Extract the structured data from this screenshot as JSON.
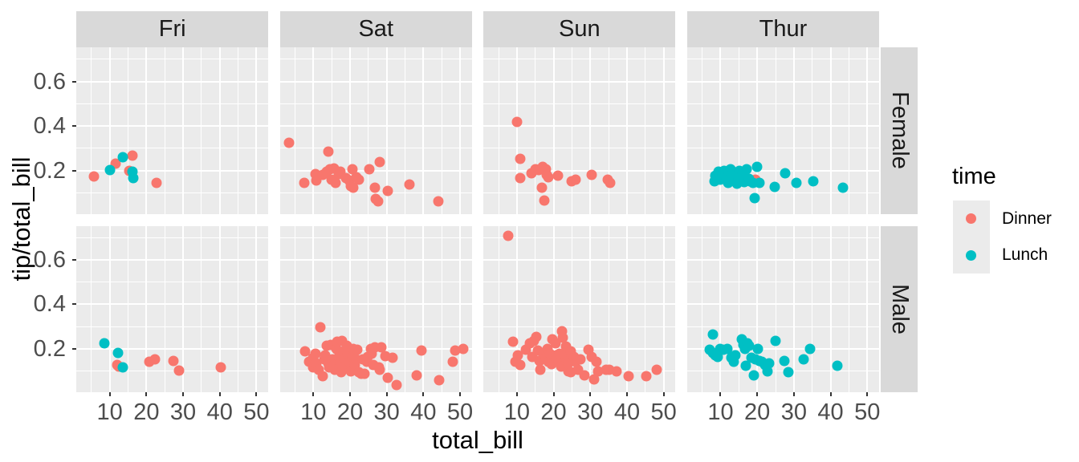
{
  "chart_data": {
    "type": "scatter",
    "title": "",
    "xlabel": "total_bill",
    "ylabel": "tip/total_bill",
    "facet_cols": [
      "Fri",
      "Sat",
      "Sun",
      "Thur"
    ],
    "facet_rows": [
      "Female",
      "Male"
    ],
    "x_ticks": [
      10,
      20,
      30,
      40,
      50
    ],
    "x_tick_labels": [
      "10",
      "20",
      "30",
      "40",
      "50"
    ],
    "x_minor_ticks": [
      5,
      15,
      25,
      35,
      45
    ],
    "y_ticks": [
      0.2,
      0.4,
      0.6
    ],
    "y_tick_labels": [
      "0.2",
      "0.4",
      "0.6"
    ],
    "y_minor_ticks": [
      0.1,
      0.3,
      0.5,
      0.7
    ],
    "x_domain": [
      0.88,
      53.25
    ],
    "y_domain": [
      0.005,
      0.755
    ],
    "grid": true,
    "legend": {
      "title": "time",
      "position": "right",
      "entries": [
        {
          "label": "Dinner",
          "color": "#F8766D"
        },
        {
          "label": "Lunch",
          "color": "#00BFC4"
        }
      ]
    },
    "colors": {
      "panel_bg": "#EBEBEB",
      "strip_bg": "#D9D9D9",
      "grid": "#FFFFFF",
      "axis_text": "#4D4D4D",
      "strip_text": "#1A1A1A",
      "tick_mark": "#333333",
      "legend_key_bg": "#EBEBEB"
    },
    "panels": [
      {
        "day": "Fri",
        "sex": "Female",
        "series": {
          "Dinner": [
            [
              5.8,
              0.174
            ],
            [
              11.5,
              0.23
            ],
            [
              15.3,
              0.2
            ],
            [
              16.3,
              0.266
            ],
            [
              22.7,
              0.145
            ]
          ],
          "Lunch": [
            [
              10.1,
              0.202
            ],
            [
              13.5,
              0.262
            ],
            [
              16.3,
              0.194
            ],
            [
              16.4,
              0.166
            ]
          ]
        }
      },
      {
        "day": "Sat",
        "sex": "Female",
        "series": {
          "Dinner": [
            [
              3.4,
              0.326
            ],
            [
              7.6,
              0.144
            ],
            [
              10.7,
              0.186
            ],
            [
              10.9,
              0.156
            ],
            [
              12.6,
              0.182
            ],
            [
              13.7,
              0.196
            ],
            [
              14.1,
              0.286
            ],
            [
              14.6,
              0.208
            ],
            [
              15.0,
              0.161
            ],
            [
              15.7,
              0.211
            ],
            [
              16.0,
              0.146
            ],
            [
              16.9,
              0.186
            ],
            [
              17.4,
              0.196
            ],
            [
              19.0,
              0.168
            ],
            [
              19.7,
              0.156
            ],
            [
              20.2,
              0.132
            ],
            [
              20.7,
              0.208
            ],
            [
              20.9,
              0.122
            ],
            [
              21.8,
              0.172
            ],
            [
              22.5,
              0.158
            ],
            [
              25.3,
              0.208
            ],
            [
              26.8,
              0.125
            ],
            [
              27.1,
              0.075
            ],
            [
              27.7,
              0.064
            ],
            [
              28.1,
              0.238
            ],
            [
              30.3,
              0.11
            ],
            [
              36.3,
              0.138
            ],
            [
              44.0,
              0.062
            ]
          ],
          "Lunch": []
        }
      },
      {
        "day": "Sun",
        "sex": "Female",
        "series": {
          "Dinner": [
            [
              10.0,
              0.42
            ],
            [
              10.9,
              0.254
            ],
            [
              10.9,
              0.166
            ],
            [
              14.0,
              0.19
            ],
            [
              15.0,
              0.208
            ],
            [
              16.0,
              0.204
            ],
            [
              16.8,
              0.125
            ],
            [
              17.1,
              0.216
            ],
            [
              17.4,
              0.065
            ],
            [
              17.9,
              0.206
            ],
            [
              18.2,
              0.18
            ],
            [
              18.6,
              0.17
            ],
            [
              21.3,
              0.176
            ],
            [
              25.0,
              0.152
            ],
            [
              25.9,
              0.161
            ],
            [
              30.4,
              0.18
            ],
            [
              34.8,
              0.158
            ],
            [
              35.5,
              0.146
            ]
          ],
          "Lunch": []
        }
      },
      {
        "day": "Thur",
        "sex": "Female",
        "series": {
          "Dinner": [
            [
              19.5,
              0.16
            ]
          ],
          "Lunch": [
            [
              8.3,
              0.152
            ],
            [
              8.5,
              0.176
            ],
            [
              9.4,
              0.194
            ],
            [
              9.8,
              0.158
            ],
            [
              10.1,
              0.172
            ],
            [
              10.5,
              0.18
            ],
            [
              11.0,
              0.2
            ],
            [
              11.6,
              0.164
            ],
            [
              12.0,
              0.146
            ],
            [
              12.4,
              0.19
            ],
            [
              12.7,
              0.208
            ],
            [
              13.0,
              0.176
            ],
            [
              13.4,
              0.194
            ],
            [
              13.8,
              0.152
            ],
            [
              14.5,
              0.14
            ],
            [
              14.9,
              0.163
            ],
            [
              15.1,
              0.2
            ],
            [
              16.0,
              0.188
            ],
            [
              16.5,
              0.15
            ],
            [
              17.1,
              0.206
            ],
            [
              17.8,
              0.164
            ],
            [
              18.0,
              0.152
            ],
            [
              18.9,
              0.146
            ],
            [
              19.3,
              0.077
            ],
            [
              20.0,
              0.218
            ],
            [
              20.7,
              0.146
            ],
            [
              24.7,
              0.128
            ],
            [
              27.7,
              0.188
            ],
            [
              30.6,
              0.146
            ],
            [
              35.3,
              0.152
            ],
            [
              43.4,
              0.122
            ]
          ]
        }
      },
      {
        "day": "Fri",
        "sex": "Male",
        "series": {
          "Dinner": [
            [
              12.0,
              0.125
            ],
            [
              12.5,
              0.12
            ],
            [
              20.8,
              0.14
            ],
            [
              22.4,
              0.152
            ],
            [
              27.4,
              0.144
            ],
            [
              29.0,
              0.101
            ],
            [
              40.3,
              0.114
            ]
          ],
          "Lunch": [
            [
              8.6,
              0.224
            ],
            [
              12.2,
              0.179
            ],
            [
              13.5,
              0.114
            ]
          ]
        }
      },
      {
        "day": "Sat",
        "sex": "Male",
        "series": {
          "Dinner": [
            [
              7.8,
              0.188
            ],
            [
              8.9,
              0.14
            ],
            [
              9.9,
              0.158
            ],
            [
              10.0,
              0.116
            ],
            [
              10.7,
              0.176
            ],
            [
              10.9,
              0.134
            ],
            [
              11.5,
              0.104
            ],
            [
              12.0,
              0.295
            ],
            [
              12.6,
              0.074
            ],
            [
              12.9,
              0.152
            ],
            [
              13.3,
              0.17
            ],
            [
              13.7,
              0.212
            ],
            [
              14.0,
              0.134
            ],
            [
              14.4,
              0.116
            ],
            [
              14.7,
              0.218
            ],
            [
              15.1,
              0.152
            ],
            [
              15.7,
              0.128
            ],
            [
              15.8,
              0.104
            ],
            [
              16.2,
              0.2
            ],
            [
              16.6,
              0.23
            ],
            [
              16.9,
              0.164
            ],
            [
              17.3,
              0.134
            ],
            [
              17.7,
              0.092
            ],
            [
              17.9,
              0.236
            ],
            [
              18.2,
              0.188
            ],
            [
              18.4,
              0.152
            ],
            [
              18.8,
              0.122
            ],
            [
              19.1,
              0.212
            ],
            [
              19.3,
              0.176
            ],
            [
              19.8,
              0.14
            ],
            [
              20.2,
              0.098
            ],
            [
              20.6,
              0.164
            ],
            [
              20.9,
              0.2
            ],
            [
              21.3,
              0.128
            ],
            [
              21.7,
              0.152
            ],
            [
              22.0,
              0.194
            ],
            [
              22.4,
              0.092
            ],
            [
              23.0,
              0.086
            ],
            [
              23.5,
              0.152
            ],
            [
              23.9,
              0.086
            ],
            [
              24.6,
              0.14
            ],
            [
              24.9,
              0.164
            ],
            [
              25.7,
              0.2
            ],
            [
              26.0,
              0.176
            ],
            [
              26.4,
              0.128
            ],
            [
              26.8,
              0.206
            ],
            [
              27.9,
              0.116
            ],
            [
              28.2,
              0.104
            ],
            [
              28.6,
              0.206
            ],
            [
              29.7,
              0.166
            ],
            [
              30.4,
              0.068
            ],
            [
              31.5,
              0.158
            ],
            [
              32.8,
              0.036
            ],
            [
              38.2,
              0.078
            ],
            [
              39.4,
              0.192
            ],
            [
              44.3,
              0.056
            ],
            [
              48.1,
              0.14
            ],
            [
              48.7,
              0.192
            ],
            [
              50.8,
              0.198
            ]
          ],
          "Lunch": []
        }
      },
      {
        "day": "Sun",
        "sex": "Male",
        "series": {
          "Dinner": [
            [
              7.7,
              0.71
            ],
            [
              9.0,
              0.23
            ],
            [
              9.7,
              0.14
            ],
            [
              10.2,
              0.17
            ],
            [
              11.0,
              0.128
            ],
            [
              12.4,
              0.194
            ],
            [
              13.5,
              0.224
            ],
            [
              14.2,
              0.164
            ],
            [
              14.6,
              0.236
            ],
            [
              15.3,
              0.254
            ],
            [
              15.8,
              0.19
            ],
            [
              16.1,
              0.146
            ],
            [
              16.4,
              0.104
            ],
            [
              17.2,
              0.176
            ],
            [
              17.9,
              0.158
            ],
            [
              18.3,
              0.2
            ],
            [
              18.6,
              0.14
            ],
            [
              19.0,
              0.176
            ],
            [
              19.4,
              0.13
            ],
            [
              19.7,
              0.242
            ],
            [
              20.5,
              0.224
            ],
            [
              20.8,
              0.17
            ],
            [
              21.0,
              0.15
            ],
            [
              21.6,
              0.176
            ],
            [
              22.0,
              0.12
            ],
            [
              22.3,
              0.278
            ],
            [
              22.6,
              0.248
            ],
            [
              23.0,
              0.17
            ],
            [
              23.4,
              0.21
            ],
            [
              23.7,
              0.14
            ],
            [
              24.0,
              0.134
            ],
            [
              24.1,
              0.098
            ],
            [
              24.7,
              0.092
            ],
            [
              24.8,
              0.188
            ],
            [
              25.6,
              0.164
            ],
            [
              26.0,
              0.14
            ],
            [
              26.7,
              0.104
            ],
            [
              27.3,
              0.15
            ],
            [
              28.5,
              0.08
            ],
            [
              29.6,
              0.194
            ],
            [
              30.3,
              0.164
            ],
            [
              31.0,
              0.062
            ],
            [
              31.8,
              0.14
            ],
            [
              32.1,
              0.098
            ],
            [
              34.3,
              0.104
            ],
            [
              35.3,
              0.104
            ],
            [
              37.2,
              0.098
            ],
            [
              40.4,
              0.074
            ],
            [
              45.2,
              0.074
            ],
            [
              48.1,
              0.104
            ]
          ],
          "Lunch": []
        }
      },
      {
        "day": "Thur",
        "sex": "Male",
        "series": {
          "Dinner": [],
          "Lunch": [
            [
              7.1,
              0.194
            ],
            [
              7.9,
              0.263
            ],
            [
              7.9,
              0.182
            ],
            [
              8.6,
              0.17
            ],
            [
              9.3,
              0.164
            ],
            [
              10.0,
              0.2
            ],
            [
              10.8,
              0.194
            ],
            [
              11.9,
              0.2
            ],
            [
              13.0,
              0.158
            ],
            [
              13.7,
              0.14
            ],
            [
              14.1,
              0.17
            ],
            [
              15.9,
              0.242
            ],
            [
              16.2,
              0.218
            ],
            [
              16.6,
              0.2
            ],
            [
              17.0,
              0.122
            ],
            [
              17.3,
              0.224
            ],
            [
              17.8,
              0.214
            ],
            [
              18.4,
              0.158
            ],
            [
              19.1,
              0.08
            ],
            [
              19.5,
              0.152
            ],
            [
              20.2,
              0.2
            ],
            [
              20.6,
              0.146
            ],
            [
              21.3,
              0.14
            ],
            [
              22.1,
              0.128
            ],
            [
              22.8,
              0.098
            ],
            [
              23.2,
              0.134
            ],
            [
              25.0,
              0.236
            ],
            [
              27.5,
              0.146
            ],
            [
              28.6,
              0.092
            ],
            [
              32.6,
              0.152
            ],
            [
              34.5,
              0.2
            ],
            [
              41.8,
              0.122
            ]
          ]
        }
      }
    ]
  }
}
